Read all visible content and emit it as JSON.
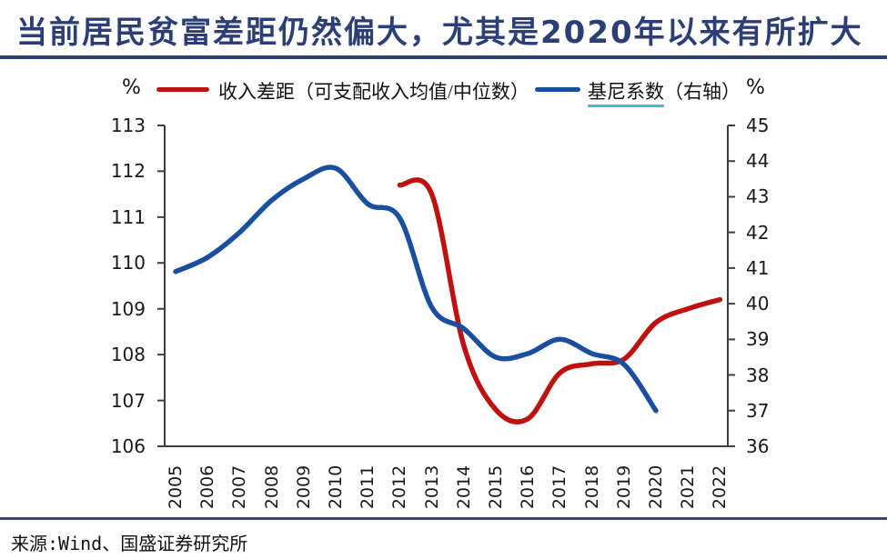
{
  "title": "当前居民贫富差距仍然偏大，尤其是2020年以来有所扩大",
  "source": "来源:Wind、国盛证券研究所",
  "legend": {
    "left_unit": "%",
    "right_unit": "%",
    "income_label": "收入差距（可支配收入均值/中位数）",
    "gini_label_main": "基尼系数",
    "gini_label_suffix": "（右轴）"
  },
  "colors": {
    "title_navy": "#2B3E76",
    "income_red": "#C01111",
    "gini_blue": "#1A4F9F",
    "underline_cyan": "#3FB9E3",
    "axis_line": "#3F3F3F",
    "bottom_rule": "#39466F"
  },
  "chart_data": {
    "type": "line",
    "title": "当前居民贫富差距仍然偏大，尤其是2020年以来有所扩大",
    "categories": [
      2005,
      2006,
      2007,
      2008,
      2009,
      2010,
      2011,
      2012,
      2013,
      2014,
      2015,
      2016,
      2017,
      2018,
      2019,
      2020,
      2021,
      2022
    ],
    "left_axis": {
      "unit": "%",
      "min": 106,
      "max": 113,
      "tick_step": 1,
      "ticks": [
        106,
        107,
        108,
        109,
        110,
        111,
        112,
        113
      ]
    },
    "right_axis": {
      "unit": "%",
      "min": 36,
      "max": 45,
      "tick_step": 1,
      "ticks": [
        36,
        37,
        38,
        39,
        40,
        41,
        42,
        43,
        44,
        45
      ]
    },
    "grid": false,
    "legend_position": "top",
    "series": [
      {
        "name": "收入差距（可支配收入均值/中位数）",
        "axis": "left",
        "color": "#C01111",
        "x": [
          2012,
          2013,
          2014,
          2015,
          2016,
          2017,
          2018,
          2019,
          2020,
          2021,
          2022
        ],
        "values": [
          111.7,
          111.5,
          108.2,
          106.8,
          106.6,
          107.6,
          107.8,
          107.9,
          108.7,
          109.0,
          109.2
        ]
      },
      {
        "name": "基尼系数（右轴）",
        "axis": "right",
        "color": "#1A4F9F",
        "x": [
          2005,
          2006,
          2007,
          2008,
          2009,
          2010,
          2011,
          2012,
          2013,
          2014,
          2015,
          2016,
          2017,
          2018,
          2019,
          2020
        ],
        "values": [
          40.9,
          41.3,
          42.0,
          42.9,
          43.5,
          43.8,
          42.8,
          42.4,
          39.9,
          39.3,
          38.5,
          38.6,
          39.0,
          38.6,
          38.3,
          37.0
        ]
      }
    ]
  }
}
